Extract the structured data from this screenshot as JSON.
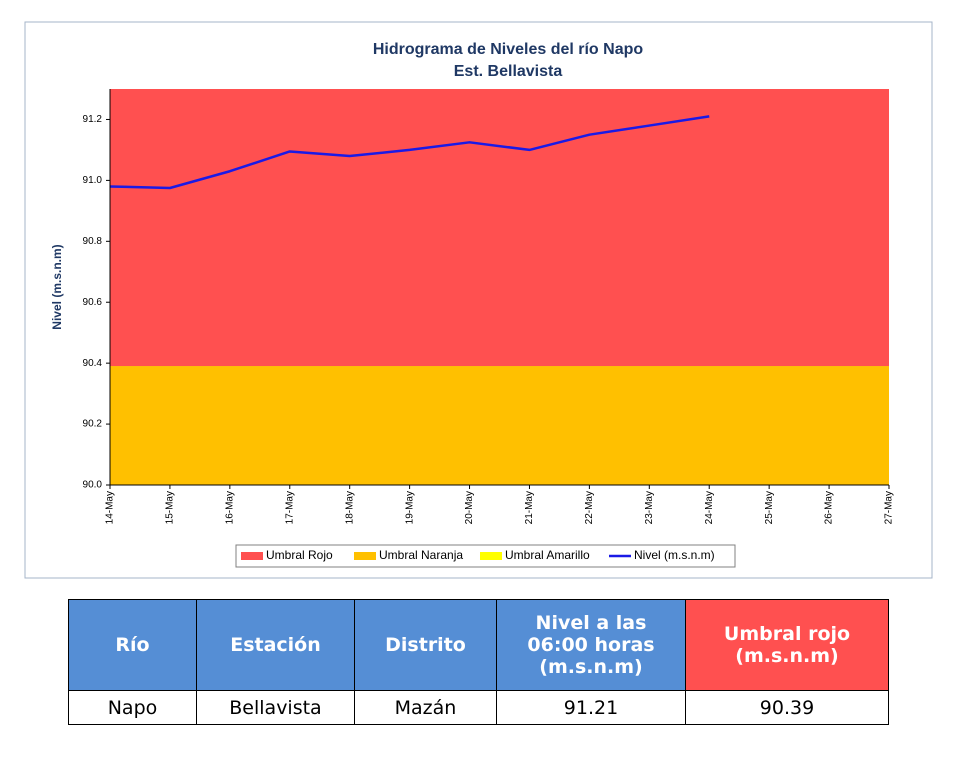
{
  "chart_data": {
    "type": "line",
    "title": "Hidrograma de Niveles del río Napo",
    "subtitle": "Est. Bellavista",
    "y_label": "Nivel (m.s.n.m)",
    "categories": [
      "14-May",
      "15-May",
      "16-May",
      "17-May",
      "18-May",
      "19-May",
      "20-May",
      "21-May",
      "22-May",
      "23-May",
      "24-May",
      "25-May",
      "26-May",
      "27-May"
    ],
    "series": [
      {
        "name": "Umbral Rojo",
        "color": "#ff5050",
        "kind": "area",
        "values": [
          91.3,
          91.3,
          91.3,
          91.3,
          91.3,
          91.3,
          91.3,
          91.3,
          91.3,
          91.3,
          91.3,
          91.3,
          91.3,
          91.3
        ]
      },
      {
        "name": "Umbral Naranja",
        "color": "#ffc000",
        "kind": "area",
        "values": [
          90.39,
          90.39,
          90.39,
          90.39,
          90.39,
          90.39,
          90.39,
          90.39,
          90.39,
          90.39,
          90.39,
          90.39,
          90.39,
          90.39
        ]
      },
      {
        "name": "Umbral Amarillo",
        "color": "#ffff00",
        "kind": "area",
        "values": [
          90.39,
          90.39,
          90.39,
          90.39,
          90.39,
          90.39,
          90.39,
          90.39,
          90.39,
          90.39,
          90.39,
          90.39,
          90.39,
          90.39
        ]
      },
      {
        "name": "Nivel (m.s.n.m)",
        "color": "#1a1ae6",
        "kind": "line",
        "values": [
          90.98,
          90.975,
          91.03,
          91.095,
          91.08,
          91.1,
          91.125,
          91.1,
          91.15,
          91.18,
          91.21,
          null,
          null,
          null
        ]
      }
    ],
    "ylim": [
      90,
      91.3
    ],
    "yticks": [
      {
        "value": 90,
        "label": "90.0"
      },
      90.2,
      90.4,
      90.6,
      90.8,
      {
        "value": 91,
        "label": "91.0"
      },
      91.2
    ],
    "legend": "bottom"
  },
  "table": {
    "header": [
      "Río",
      "Estación",
      "Distrito",
      "Nivel a las 06:00 horas (m.s.n.m)",
      "Umbral rojo (m.s.n.m)"
    ],
    "rows": [
      [
        "Napo",
        "Bellavista",
        "Mazán",
        "91.21",
        "90.39"
      ]
    ]
  }
}
